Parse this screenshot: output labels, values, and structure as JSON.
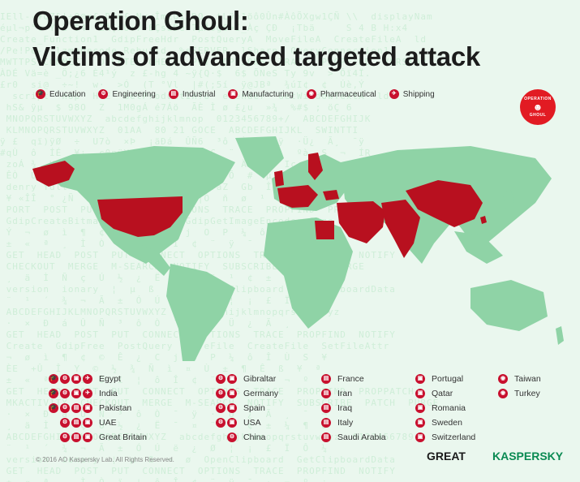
{
  "title": {
    "line1": "Operation Ghoul:",
    "line2": "Victims of advanced targeted attack"
  },
  "industries": [
    {
      "label": "Education",
      "icon": "education-icon"
    },
    {
      "label": "Engineering",
      "icon": "engineering-icon"
    },
    {
      "label": "Industrial",
      "icon": "industrial-icon"
    },
    {
      "label": "Manufacturing",
      "icon": "manufacturing-icon"
    },
    {
      "label": "Pharmaceutical",
      "icon": "pharmaceutical-icon"
    },
    {
      "label": "Shipping",
      "icon": "shipping-icon"
    }
  ],
  "badge": {
    "top": "OPERATION",
    "bottom": "GHOUL"
  },
  "colors": {
    "affected": "#b8101f",
    "land": "#8fd3a6",
    "accent": "#e21b23",
    "background": "#eaf7ee"
  },
  "legend": [
    {
      "name": "Egypt",
      "icons": [
        "education-icon",
        "engineering-icon",
        "manufacturing-icon",
        "shipping-icon"
      ]
    },
    {
      "name": "India",
      "icons": [
        "education-icon",
        "engineering-icon",
        "manufacturing-icon",
        "shipping-icon"
      ]
    },
    {
      "name": "Pakistan",
      "icons": [
        "education-icon",
        "engineering-icon",
        "industrial-icon",
        "manufacturing-icon"
      ]
    },
    {
      "name": "UAE",
      "icons": [
        "engineering-icon",
        "industrial-icon",
        "manufacturing-icon"
      ]
    },
    {
      "name": "Great Britain",
      "icons": [
        "engineering-icon",
        "industrial-icon",
        "manufacturing-icon"
      ]
    },
    {
      "name": "Gibraltar",
      "icons": [
        "engineering-icon",
        "manufacturing-icon"
      ]
    },
    {
      "name": "Germany",
      "icons": [
        "engineering-icon",
        "manufacturing-icon"
      ]
    },
    {
      "name": "Spain",
      "icons": [
        "engineering-icon",
        "manufacturing-icon"
      ]
    },
    {
      "name": "USA",
      "icons": [
        "engineering-icon",
        "manufacturing-icon"
      ]
    },
    {
      "name": "China",
      "icons": [
        "engineering-icon"
      ]
    },
    {
      "name": "France",
      "icons": [
        "industrial-icon"
      ]
    },
    {
      "name": "Iran",
      "icons": [
        "industrial-icon"
      ]
    },
    {
      "name": "Iraq",
      "icons": [
        "industrial-icon"
      ]
    },
    {
      "name": "Italy",
      "icons": [
        "industrial-icon"
      ]
    },
    {
      "name": "Saudi Arabia",
      "icons": [
        "industrial-icon"
      ]
    },
    {
      "name": "Portugal",
      "icons": [
        "manufacturing-icon"
      ]
    },
    {
      "name": "Qatar",
      "icons": [
        "manufacturing-icon"
      ]
    },
    {
      "name": "Romania",
      "icons": [
        "manufacturing-icon"
      ]
    },
    {
      "name": "Sweden",
      "icons": [
        "manufacturing-icon"
      ]
    },
    {
      "name": "Switzerland",
      "icons": [
        "manufacturing-icon"
      ]
    },
    {
      "name": "Taiwan",
      "icons": [
        "pharmaceutical-icon"
      ]
    },
    {
      "name": "Turkey",
      "icons": [
        "pharmaceutical-icon"
      ]
    }
  ],
  "footer": {
    "copyright": "© 2016 AO Kaspersky Lab. All Rights Reserved.",
    "logo_great": "GREAT",
    "logo_kaspersky": "KASPERSKY"
  }
}
